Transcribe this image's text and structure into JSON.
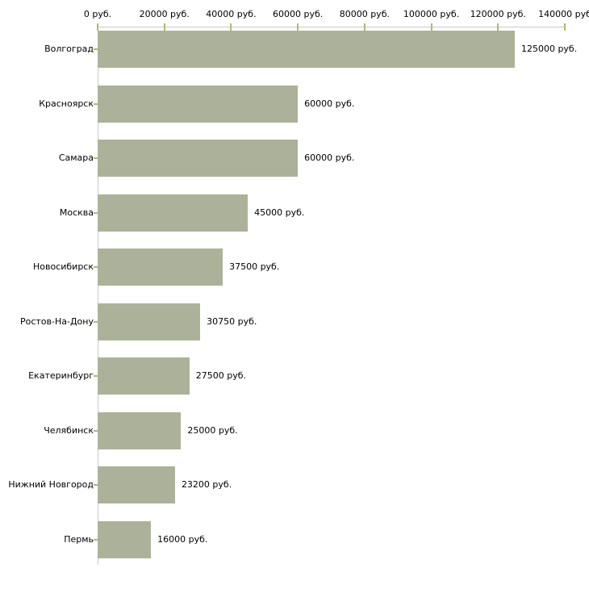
{
  "chart_data": {
    "type": "bar",
    "orientation": "horizontal",
    "title": "",
    "xlabel": "",
    "ylabel": "",
    "grid": false,
    "legend": null,
    "categories": [
      "Волгоград",
      "Красноярск",
      "Самара",
      "Москва",
      "Новосибирск",
      "Ростов-На-Дону",
      "Екатеринбург",
      "Челябинск",
      "Нижний Новгород",
      "Пермь"
    ],
    "values": [
      125000,
      60000,
      60000,
      45000,
      37500,
      30750,
      27500,
      25000,
      23200,
      16000
    ],
    "value_labels": [
      "125000 руб.",
      "60000 руб.",
      "60000 руб.",
      "45000 руб.",
      "37500 руб.",
      "30750 руб.",
      "27500 руб.",
      "25000 руб.",
      "23200 руб.",
      "16000 руб."
    ],
    "x_axis": {
      "position": "top",
      "min": 0,
      "max": 140000,
      "ticks": [
        0,
        20000,
        40000,
        60000,
        80000,
        100000,
        120000,
        140000
      ],
      "tick_labels": [
        "0 руб.",
        "20000 руб.",
        "40000 руб.",
        "60000 руб.",
        "80000 руб.",
        "100000 руб.",
        "120000 руб.",
        "140000 руб"
      ]
    },
    "colors": {
      "bar": "#abb299",
      "axis_line": "#c9c9c9",
      "tick_mark": "#b5b578",
      "text": "#000000",
      "background": "#ffffff"
    }
  }
}
